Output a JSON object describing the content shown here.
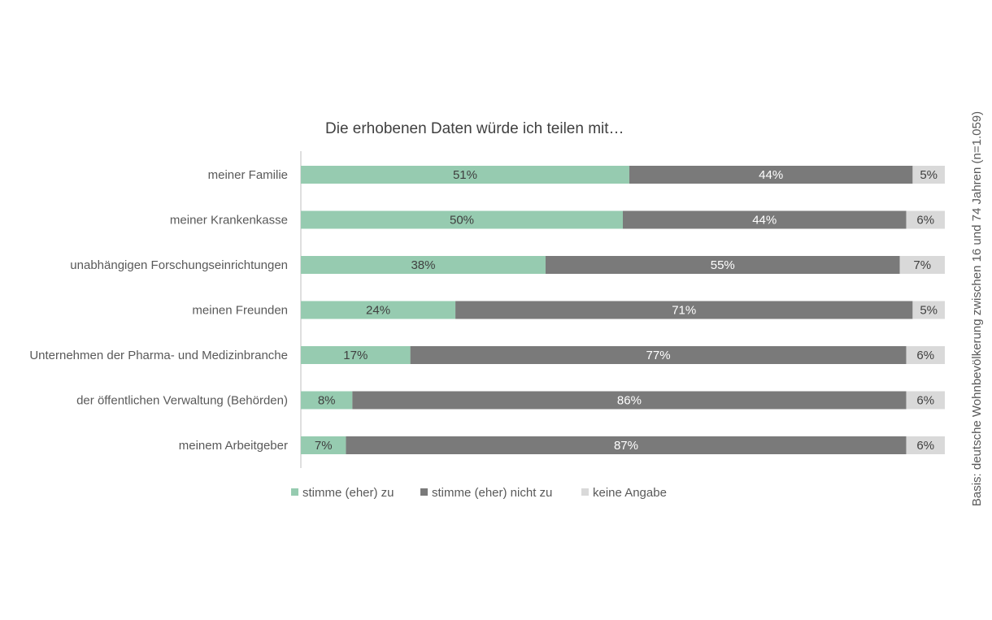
{
  "chart_data": {
    "type": "bar",
    "orientation": "horizontal",
    "stacked": true,
    "title": "Die erhobenen Daten würde ich teilen mit…",
    "note": "Basis: deutsche Wohnbevölkerung zwischen 16 und 74 Jahren (n=1.059)",
    "categories": [
      "meiner Familie",
      "meiner Krankenkasse",
      "unabhängigen Forschungseinrichtungen",
      "meinen Freunden",
      "Unternehmen der Pharma- und Medizinbranche",
      "der öffentlichen Verwaltung (Behörden)",
      "meinem Arbeitgeber"
    ],
    "series": [
      {
        "name": "stimme (eher) zu",
        "values": [
          51,
          50,
          38,
          24,
          17,
          8,
          7
        ],
        "color": "#96cbb0",
        "label_color": "#404040"
      },
      {
        "name": "stimme (eher) nicht zu",
        "values": [
          44,
          44,
          55,
          71,
          77,
          86,
          87
        ],
        "color": "#7a7a7a",
        "label_color": "#ffffff"
      },
      {
        "name": "keine Angabe",
        "values": [
          5,
          6,
          7,
          5,
          6,
          6,
          6
        ],
        "color": "#d9d9d9",
        "label_color": "#404040"
      }
    ],
    "value_suffix": "%",
    "xlim": [
      0,
      100
    ],
    "grid": false,
    "legend_position": "bottom"
  }
}
